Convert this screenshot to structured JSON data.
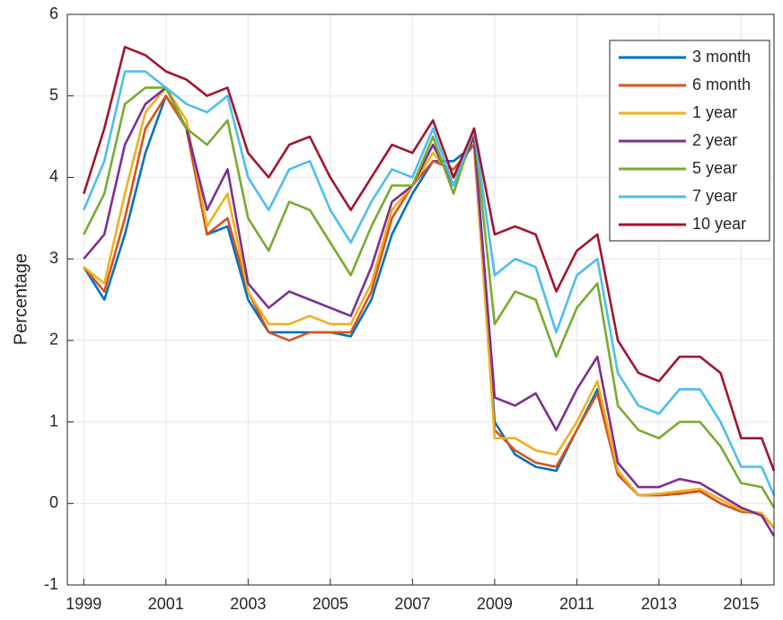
{
  "chart_data": {
    "type": "line",
    "y_label": "Percentage",
    "x": [
      1999,
      1999.5,
      2000,
      2000.5,
      2001,
      2001.5,
      2002,
      2002.5,
      2003,
      2003.5,
      2004,
      2004.5,
      2005,
      2005.5,
      2006,
      2006.5,
      2007,
      2007.5,
      2008,
      2008.5,
      2009,
      2009.5,
      2010,
      2010.5,
      2011,
      2011.5,
      2012,
      2012.5,
      2013,
      2013.5,
      2014,
      2014.5,
      2015,
      2015.5,
      2015.8
    ],
    "series": [
      {
        "name": "3 month",
        "color": "#0072BD",
        "values": [
          2.9,
          2.5,
          3.3,
          4.3,
          5.0,
          4.6,
          3.3,
          3.4,
          2.5,
          2.1,
          2.1,
          2.1,
          2.1,
          2.05,
          2.5,
          3.3,
          3.8,
          4.2,
          4.2,
          4.4,
          1.0,
          0.6,
          0.45,
          0.4,
          0.9,
          1.4,
          0.4,
          0.1,
          0.1,
          0.12,
          0.15,
          0.0,
          -0.1,
          -0.12,
          -0.3
        ]
      },
      {
        "name": "6 month",
        "color": "#D95319",
        "values": [
          2.9,
          2.6,
          3.5,
          4.6,
          5.0,
          4.6,
          3.3,
          3.5,
          2.6,
          2.1,
          2.0,
          2.1,
          2.1,
          2.1,
          2.6,
          3.5,
          3.9,
          4.2,
          4.1,
          4.4,
          0.9,
          0.65,
          0.5,
          0.45,
          0.9,
          1.35,
          0.35,
          0.1,
          0.1,
          0.12,
          0.15,
          0.0,
          -0.1,
          -0.12,
          -0.3
        ]
      },
      {
        "name": "1 year",
        "color": "#EDB120",
        "values": [
          2.9,
          2.7,
          3.8,
          4.8,
          5.1,
          4.7,
          3.4,
          3.8,
          2.6,
          2.2,
          2.2,
          2.3,
          2.2,
          2.2,
          2.7,
          3.6,
          3.9,
          4.3,
          4.0,
          4.5,
          0.8,
          0.8,
          0.65,
          0.6,
          1.0,
          1.5,
          0.4,
          0.1,
          0.12,
          0.15,
          0.18,
          0.05,
          -0.08,
          -0.12,
          -0.3
        ]
      },
      {
        "name": "2 year",
        "color": "#7E2F8E",
        "values": [
          3.0,
          3.3,
          4.4,
          4.9,
          5.1,
          4.6,
          3.6,
          4.1,
          2.7,
          2.4,
          2.6,
          2.5,
          2.4,
          2.3,
          2.9,
          3.7,
          3.9,
          4.4,
          3.9,
          4.5,
          1.3,
          1.2,
          1.35,
          0.9,
          1.4,
          1.8,
          0.5,
          0.2,
          0.2,
          0.3,
          0.25,
          0.1,
          -0.05,
          -0.15,
          -0.4
        ]
      },
      {
        "name": "5 year",
        "color": "#77AC30",
        "values": [
          3.3,
          3.8,
          4.9,
          5.1,
          5.1,
          4.6,
          4.4,
          4.7,
          3.5,
          3.1,
          3.7,
          3.6,
          3.2,
          2.8,
          3.4,
          3.9,
          3.9,
          4.5,
          3.8,
          4.6,
          2.2,
          2.6,
          2.5,
          1.8,
          2.4,
          2.7,
          1.2,
          0.9,
          0.8,
          1.0,
          1.0,
          0.7,
          0.25,
          0.2,
          -0.05
        ]
      },
      {
        "name": "7 year",
        "color": "#4DBEEE",
        "values": [
          3.6,
          4.2,
          5.3,
          5.3,
          5.1,
          4.9,
          4.8,
          5.0,
          4.0,
          3.6,
          4.1,
          4.2,
          3.6,
          3.2,
          3.7,
          4.1,
          4.0,
          4.6,
          3.9,
          4.6,
          2.8,
          3.0,
          2.9,
          2.1,
          2.8,
          3.0,
          1.6,
          1.2,
          1.1,
          1.4,
          1.4,
          1.0,
          0.45,
          0.45,
          0.1
        ]
      },
      {
        "name": "10 year",
        "color": "#A2142F",
        "values": [
          3.8,
          4.6,
          5.6,
          5.5,
          5.3,
          5.2,
          5.0,
          5.1,
          4.3,
          4.0,
          4.4,
          4.5,
          4.0,
          3.6,
          4.0,
          4.4,
          4.3,
          4.7,
          4.0,
          4.6,
          3.3,
          3.4,
          3.3,
          2.6,
          3.1,
          3.3,
          2.0,
          1.6,
          1.5,
          1.8,
          1.8,
          1.6,
          0.8,
          0.8,
          0.4
        ]
      }
    ],
    "xlim": [
      1998.6,
      2015.8
    ],
    "xticks": [
      1999,
      2001,
      2003,
      2005,
      2007,
      2009,
      2011,
      2013,
      2015
    ],
    "ylim": [
      -1,
      6
    ],
    "yticks": [
      -1,
      0,
      1,
      2,
      3,
      4,
      5,
      6
    ],
    "grid": true,
    "legend": "upper-right"
  }
}
